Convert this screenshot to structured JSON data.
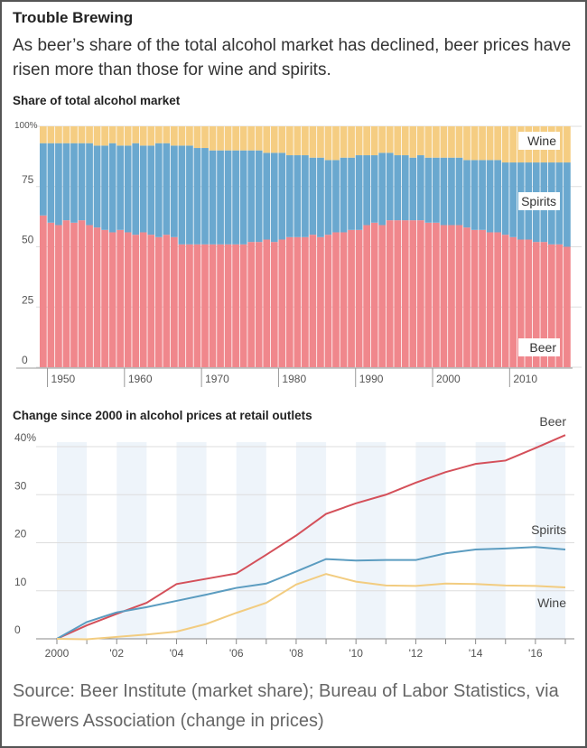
{
  "header": {
    "title": "Trouble Brewing",
    "subtitle": "As beer’s share of the total alcohol market has declined, beer prices have risen more than those for wine and spirits."
  },
  "source": "Source: Beer Institute  (market share); Bureau of Labor Statistics, via Brewers Association (change in prices)",
  "colors": {
    "beer_share": "#f0878c",
    "spirits_share": "#6aa8cf",
    "wine_share": "#f5cd82",
    "beer_line": "#d4505a",
    "spirits_line": "#5b9cc0",
    "wine_line": "#f2cc80",
    "band": "#eef4fa"
  },
  "chart_data": [
    {
      "type": "bar",
      "stacked": true,
      "title": "Share of total alcohol market",
      "x": [
        1949,
        1950,
        1951,
        1952,
        1953,
        1954,
        1955,
        1956,
        1957,
        1958,
        1959,
        1960,
        1961,
        1962,
        1963,
        1964,
        1965,
        1966,
        1967,
        1968,
        1969,
        1970,
        1971,
        1972,
        1973,
        1974,
        1975,
        1976,
        1977,
        1978,
        1979,
        1980,
        1981,
        1982,
        1983,
        1984,
        1985,
        1986,
        1987,
        1988,
        1989,
        1990,
        1991,
        1992,
        1993,
        1994,
        1995,
        1996,
        1997,
        1998,
        1999,
        2000,
        2001,
        2002,
        2003,
        2004,
        2005,
        2006,
        2007,
        2008,
        2009,
        2010,
        2011,
        2012,
        2013,
        2014,
        2015,
        2016,
        2017
      ],
      "beer": [
        63,
        60,
        59,
        61,
        60,
        61,
        59,
        58,
        57,
        56,
        57,
        56,
        55,
        56,
        55,
        54,
        55,
        54,
        51,
        51,
        51,
        51,
        51,
        51,
        51,
        51,
        51,
        52,
        52,
        53,
        52,
        53,
        54,
        54,
        54,
        55,
        54,
        55,
        56,
        56,
        57,
        57,
        59,
        60,
        59,
        61,
        61,
        61,
        61,
        61,
        60,
        60,
        59,
        59,
        59,
        58,
        57,
        57,
        56,
        56,
        55,
        54,
        53,
        53,
        52,
        52,
        51,
        51,
        50
      ],
      "beer_plus_spirits": [
        93,
        93,
        93,
        93,
        93,
        93,
        93,
        92,
        92,
        93,
        92,
        92,
        93,
        92,
        92,
        93,
        93,
        92,
        92,
        92,
        91,
        91,
        90,
        90,
        90,
        90,
        90,
        90,
        90,
        89,
        89,
        89,
        88,
        88,
        88,
        87,
        87,
        86,
        86,
        87,
        87,
        88,
        88,
        88,
        89,
        89,
        88,
        88,
        87,
        88,
        87,
        87,
        87,
        87,
        87,
        86,
        86,
        86,
        86,
        86,
        85,
        85,
        85,
        85,
        85,
        85,
        85,
        85,
        85
      ],
      "series_labels": [
        "Wine",
        "Spirits",
        "Beer"
      ],
      "yticks": [
        "100%",
        "75",
        "50",
        "25",
        "0"
      ],
      "ylim": [
        0,
        100
      ],
      "xticks": [
        "1950",
        "1960",
        "1970",
        "1980",
        "1990",
        "2000",
        "2010"
      ]
    },
    {
      "type": "line",
      "title": "Change since 2000 in alcohol prices at retail outlets",
      "x": [
        2000,
        2001,
        2002,
        2003,
        2004,
        2005,
        2006,
        2007,
        2008,
        2009,
        2010,
        2011,
        2012,
        2013,
        2014,
        2015,
        2016,
        2017
      ],
      "series": [
        {
          "name": "Beer",
          "values": [
            0,
            2.8,
            5.2,
            7.5,
            11.4,
            12.5,
            13.6,
            17.5,
            21.5,
            26,
            28.2,
            30,
            32.5,
            34.7,
            36.4,
            37.1,
            39.7,
            42.4
          ]
        },
        {
          "name": "Spirits",
          "values": [
            0,
            3.5,
            5.5,
            6.6,
            7.9,
            9.2,
            10.6,
            11.5,
            14,
            16.6,
            16.3,
            16.4,
            16.4,
            17.8,
            18.6,
            18.8,
            19.1,
            18.6
          ]
        },
        {
          "name": "Wine",
          "values": [
            0,
            -0.1,
            0.4,
            0.9,
            1.5,
            3.1,
            5.4,
            7.5,
            11.3,
            13.5,
            11.9,
            11.1,
            11.0,
            11.5,
            11.4,
            11.1,
            11.0,
            10.7
          ]
        }
      ],
      "yticks": [
        "40%",
        "30",
        "20",
        "10",
        "0"
      ],
      "ylim": [
        0,
        40
      ],
      "xticks": [
        "2000",
        "'02",
        "'04",
        "'06",
        "'08",
        "'10",
        "'12",
        "'14",
        "'16"
      ]
    }
  ]
}
